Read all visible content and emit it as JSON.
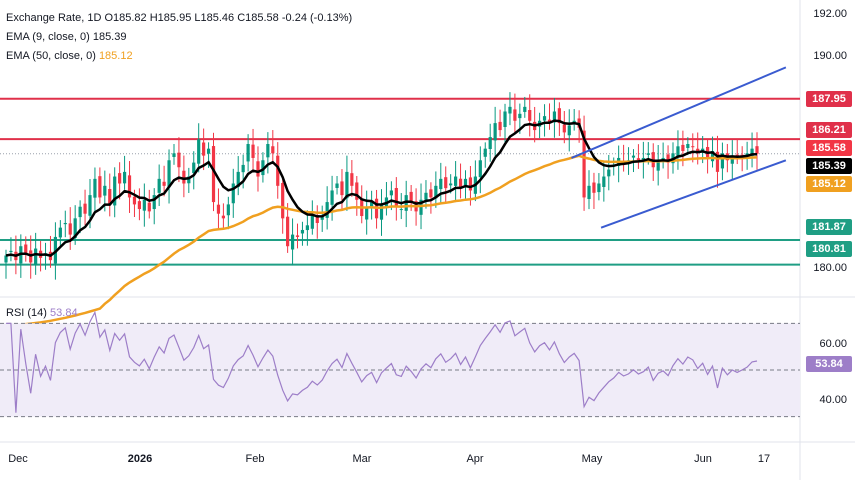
{
  "header": {
    "symbol": "Exchange Rate, 1D",
    "open": "O185.82",
    "high": "H185.95",
    "low": "L185.46",
    "close": "C185.58",
    "change": "-0.24 (-0.13%)"
  },
  "indicators": {
    "ema9_label": "EMA (9, close, 0)",
    "ema9_value": "185.39",
    "ema50_label": "EMA (50, close, 0)",
    "ema50_value": "185.12",
    "rsi_label": "RSI (14)",
    "rsi_value": "53.84"
  },
  "colors": {
    "up": "#089981",
    "down": "#f23645",
    "ema9": "#000000",
    "ema50": "#f0a020",
    "resistance": "#e0304a",
    "support": "#1f9e84",
    "channel": "#3a5bd0",
    "rsi": "#9d7ec8",
    "rsi_band": "#f0ecf8"
  },
  "chart_data": [
    {
      "type": "candlestick",
      "title": "Exchange Rate, 1D",
      "x_tick_labels": [
        "Dec",
        "2026",
        "Feb",
        "Mar",
        "Apr",
        "May",
        "Jun",
        "17"
      ],
      "y_tick_labels": [
        "192.00",
        "190.00",
        "180.00"
      ],
      "ylim": [
        179.5,
        192.2
      ],
      "horizontal_levels": [
        {
          "label": "187.95",
          "value": 187.95,
          "color": "#e0304a"
        },
        {
          "label": "186.21",
          "value": 186.21,
          "color": "#e0304a"
        },
        {
          "label": "181.87",
          "value": 181.87,
          "color": "#1f9e84"
        },
        {
          "label": "180.81",
          "value": 180.81,
          "color": "#1f9e84"
        }
      ],
      "price_labels": [
        {
          "label": "185.58",
          "value": 185.58,
          "color": "#f23645"
        },
        {
          "label": "185.39",
          "value": 185.39,
          "color": "#000000"
        },
        {
          "label": "185.12",
          "value": 185.12,
          "color": "#f0a020"
        }
      ],
      "channel": {
        "upper": [
          {
            "x": "2026-04-27",
            "y": 185.4
          },
          {
            "x": "2026-06-24",
            "y": 189.3
          }
        ],
        "lower": [
          {
            "x": "2026-05-05",
            "y": 182.4
          },
          {
            "x": "2026-06-24",
            "y": 185.3
          }
        ]
      },
      "closes": [
        181.2,
        181.4,
        181.0,
        181.6,
        181.3,
        180.9,
        181.5,
        181.1,
        181.3,
        181.0,
        182.0,
        182.4,
        182.6,
        182.1,
        182.8,
        183.3,
        183.0,
        183.8,
        184.5,
        183.7,
        184.2,
        183.4,
        184.6,
        184.3,
        184.8,
        183.7,
        183.4,
        183.2,
        183.6,
        183.1,
        183.8,
        184.5,
        184.2,
        185.3,
        185.6,
        185.0,
        184.3,
        184.6,
        185.2,
        186.2,
        185.5,
        185.8,
        183.5,
        183.0,
        182.8,
        183.4,
        184.3,
        184.8,
        185.1,
        186.0,
        185.4,
        184.6,
        185.3,
        186.0,
        185.6,
        184.2,
        182.8,
        181.6,
        182.1,
        182.0,
        182.3,
        182.5,
        182.9,
        182.6,
        182.9,
        183.5,
        184.0,
        184.3,
        183.8,
        184.8,
        184.2,
        183.6,
        182.9,
        183.3,
        183.5,
        182.8,
        183.4,
        183.7,
        184.0,
        183.3,
        183.2,
        183.8,
        183.5,
        183.1,
        183.6,
        183.9,
        183.7,
        184.2,
        184.5,
        184.1,
        184.3,
        184.6,
        184.1,
        184.5,
        184.0,
        184.6,
        185.3,
        185.8,
        186.3,
        186.9,
        186.6,
        187.4,
        187.6,
        187.0,
        187.3,
        187.6,
        187.0,
        186.6,
        187.0,
        187.2,
        186.9,
        187.4,
        186.9,
        186.5,
        186.8,
        187.0,
        186.7,
        183.7,
        184.2,
        183.9,
        184.3,
        184.6,
        184.9,
        185.1,
        185.4,
        185.2,
        185.3,
        185.5,
        185.3,
        185.4,
        185.6,
        185.0,
        185.3,
        185.4,
        185.2,
        185.6,
        185.9,
        185.7,
        186.0,
        185.9,
        185.6,
        185.8,
        185.4,
        185.7,
        184.8,
        185.6,
        185.3,
        185.5,
        185.4,
        185.5,
        185.6,
        185.8,
        185.58
      ],
      "ema9_end": 185.39,
      "ema50_end": 185.12
    },
    {
      "type": "line",
      "title": "RSI (14)",
      "y_tick_labels": [
        "60.00",
        "40.00"
      ],
      "ylim": [
        20,
        80
      ],
      "bands": [
        70,
        50,
        30
      ],
      "current": 53.84
    }
  ]
}
